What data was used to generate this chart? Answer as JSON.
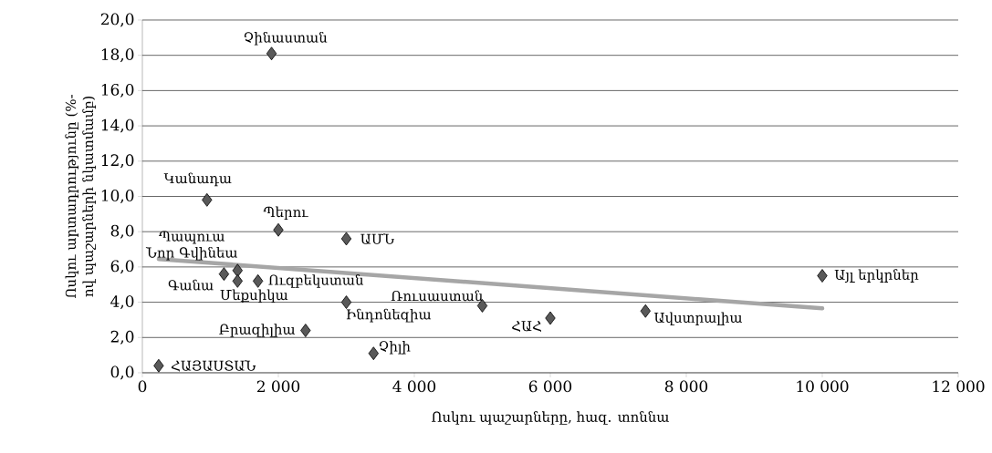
{
  "chart_data": {
    "type": "scatter",
    "xlabel": "Ոսկու պաշարները, հազ. տոննա",
    "ylabel": "Ոսկու արտադրությունը (%-ով պաշարների նկատմամբ)",
    "xlim": [
      0,
      12000
    ],
    "ylim": [
      0,
      20
    ],
    "xticks": [
      0,
      {
        "value": 2000,
        "label": "2 000"
      },
      {
        "value": 4000,
        "label": "4 000"
      },
      {
        "value": 6000,
        "label": "6 000"
      },
      {
        "value": 8000,
        "label": "8 000"
      },
      {
        "value": 10000,
        "label": "10 000"
      },
      {
        "value": 12000,
        "label": "12 000"
      }
    ],
    "yticks": [
      {
        "value": 0,
        "label": "0,0"
      },
      {
        "value": 2,
        "label": "2,0"
      },
      {
        "value": 4,
        "label": "4,0"
      },
      {
        "value": 6,
        "label": "6,0"
      },
      {
        "value": 8,
        "label": "8,0"
      },
      {
        "value": 10,
        "label": "10,0"
      },
      {
        "value": 12,
        "label": "12,0"
      },
      {
        "value": 14,
        "label": "14,0"
      },
      {
        "value": 16,
        "label": "16,0"
      },
      {
        "value": 18,
        "label": "18,0"
      },
      {
        "value": 20,
        "label": "20,0"
      }
    ],
    "grid": "y",
    "marker": "diamond",
    "series": [
      {
        "color": "#595959",
        "x": [
          1900,
          950,
          2000,
          3000,
          1400,
          1200,
          1400,
          1700,
          3000,
          2400,
          3400,
          240,
          5000,
          6000,
          7400,
          10000
        ],
        "values": [
          18.1,
          9.8,
          8.1,
          7.6,
          5.8,
          5.6,
          5.2,
          5.2,
          4.0,
          2.4,
          1.1,
          0.4,
          3.8,
          3.1,
          3.5,
          5.5
        ]
      },
      {
        "type": "line",
        "marker": "none",
        "color": "#a6a6a6",
        "x": [
          240,
          10000
        ],
        "values": [
          6.45,
          3.65
        ]
      }
    ],
    "annotations": [
      {
        "text": "Չինաստան",
        "x": 1900,
        "y": 18.1
      },
      {
        "text": "Կանադա",
        "x": 950,
        "y": 9.8
      },
      {
        "text": "Պերու",
        "x": 2000,
        "y": 8.1
      },
      {
        "text": "ԱՄՆ",
        "x": 3000,
        "y": 7.6
      },
      {
        "text": "Պապուա Նոր Գվինեա",
        "x": 1400,
        "y": 5.8
      },
      {
        "text": "Գանա",
        "x": 1200,
        "y": 5.6
      },
      {
        "text": "Մեքսիկա",
        "x": 1400,
        "y": 5.2
      },
      {
        "text": "Ուզբեկստան",
        "x": 1700,
        "y": 5.2
      },
      {
        "text": "Ինդոնեզիա",
        "x": 3000,
        "y": 4.0
      },
      {
        "text": "Բրազիլիա",
        "x": 2400,
        "y": 2.4
      },
      {
        "text": "Չիլի",
        "x": 3400,
        "y": 1.1
      },
      {
        "text": "ՀԱՅԱՍՏԱՆ",
        "x": 240,
        "y": 0.4
      },
      {
        "text": "Ռուսաստան",
        "x": 5000,
        "y": 3.8
      },
      {
        "text": "ՀԱՀ",
        "x": 6000,
        "y": 3.1
      },
      {
        "text": "Ավստրալիա",
        "x": 7400,
        "y": 3.5
      },
      {
        "text": "Այլ երկրներ",
        "x": 10000,
        "y": 5.5
      }
    ]
  }
}
